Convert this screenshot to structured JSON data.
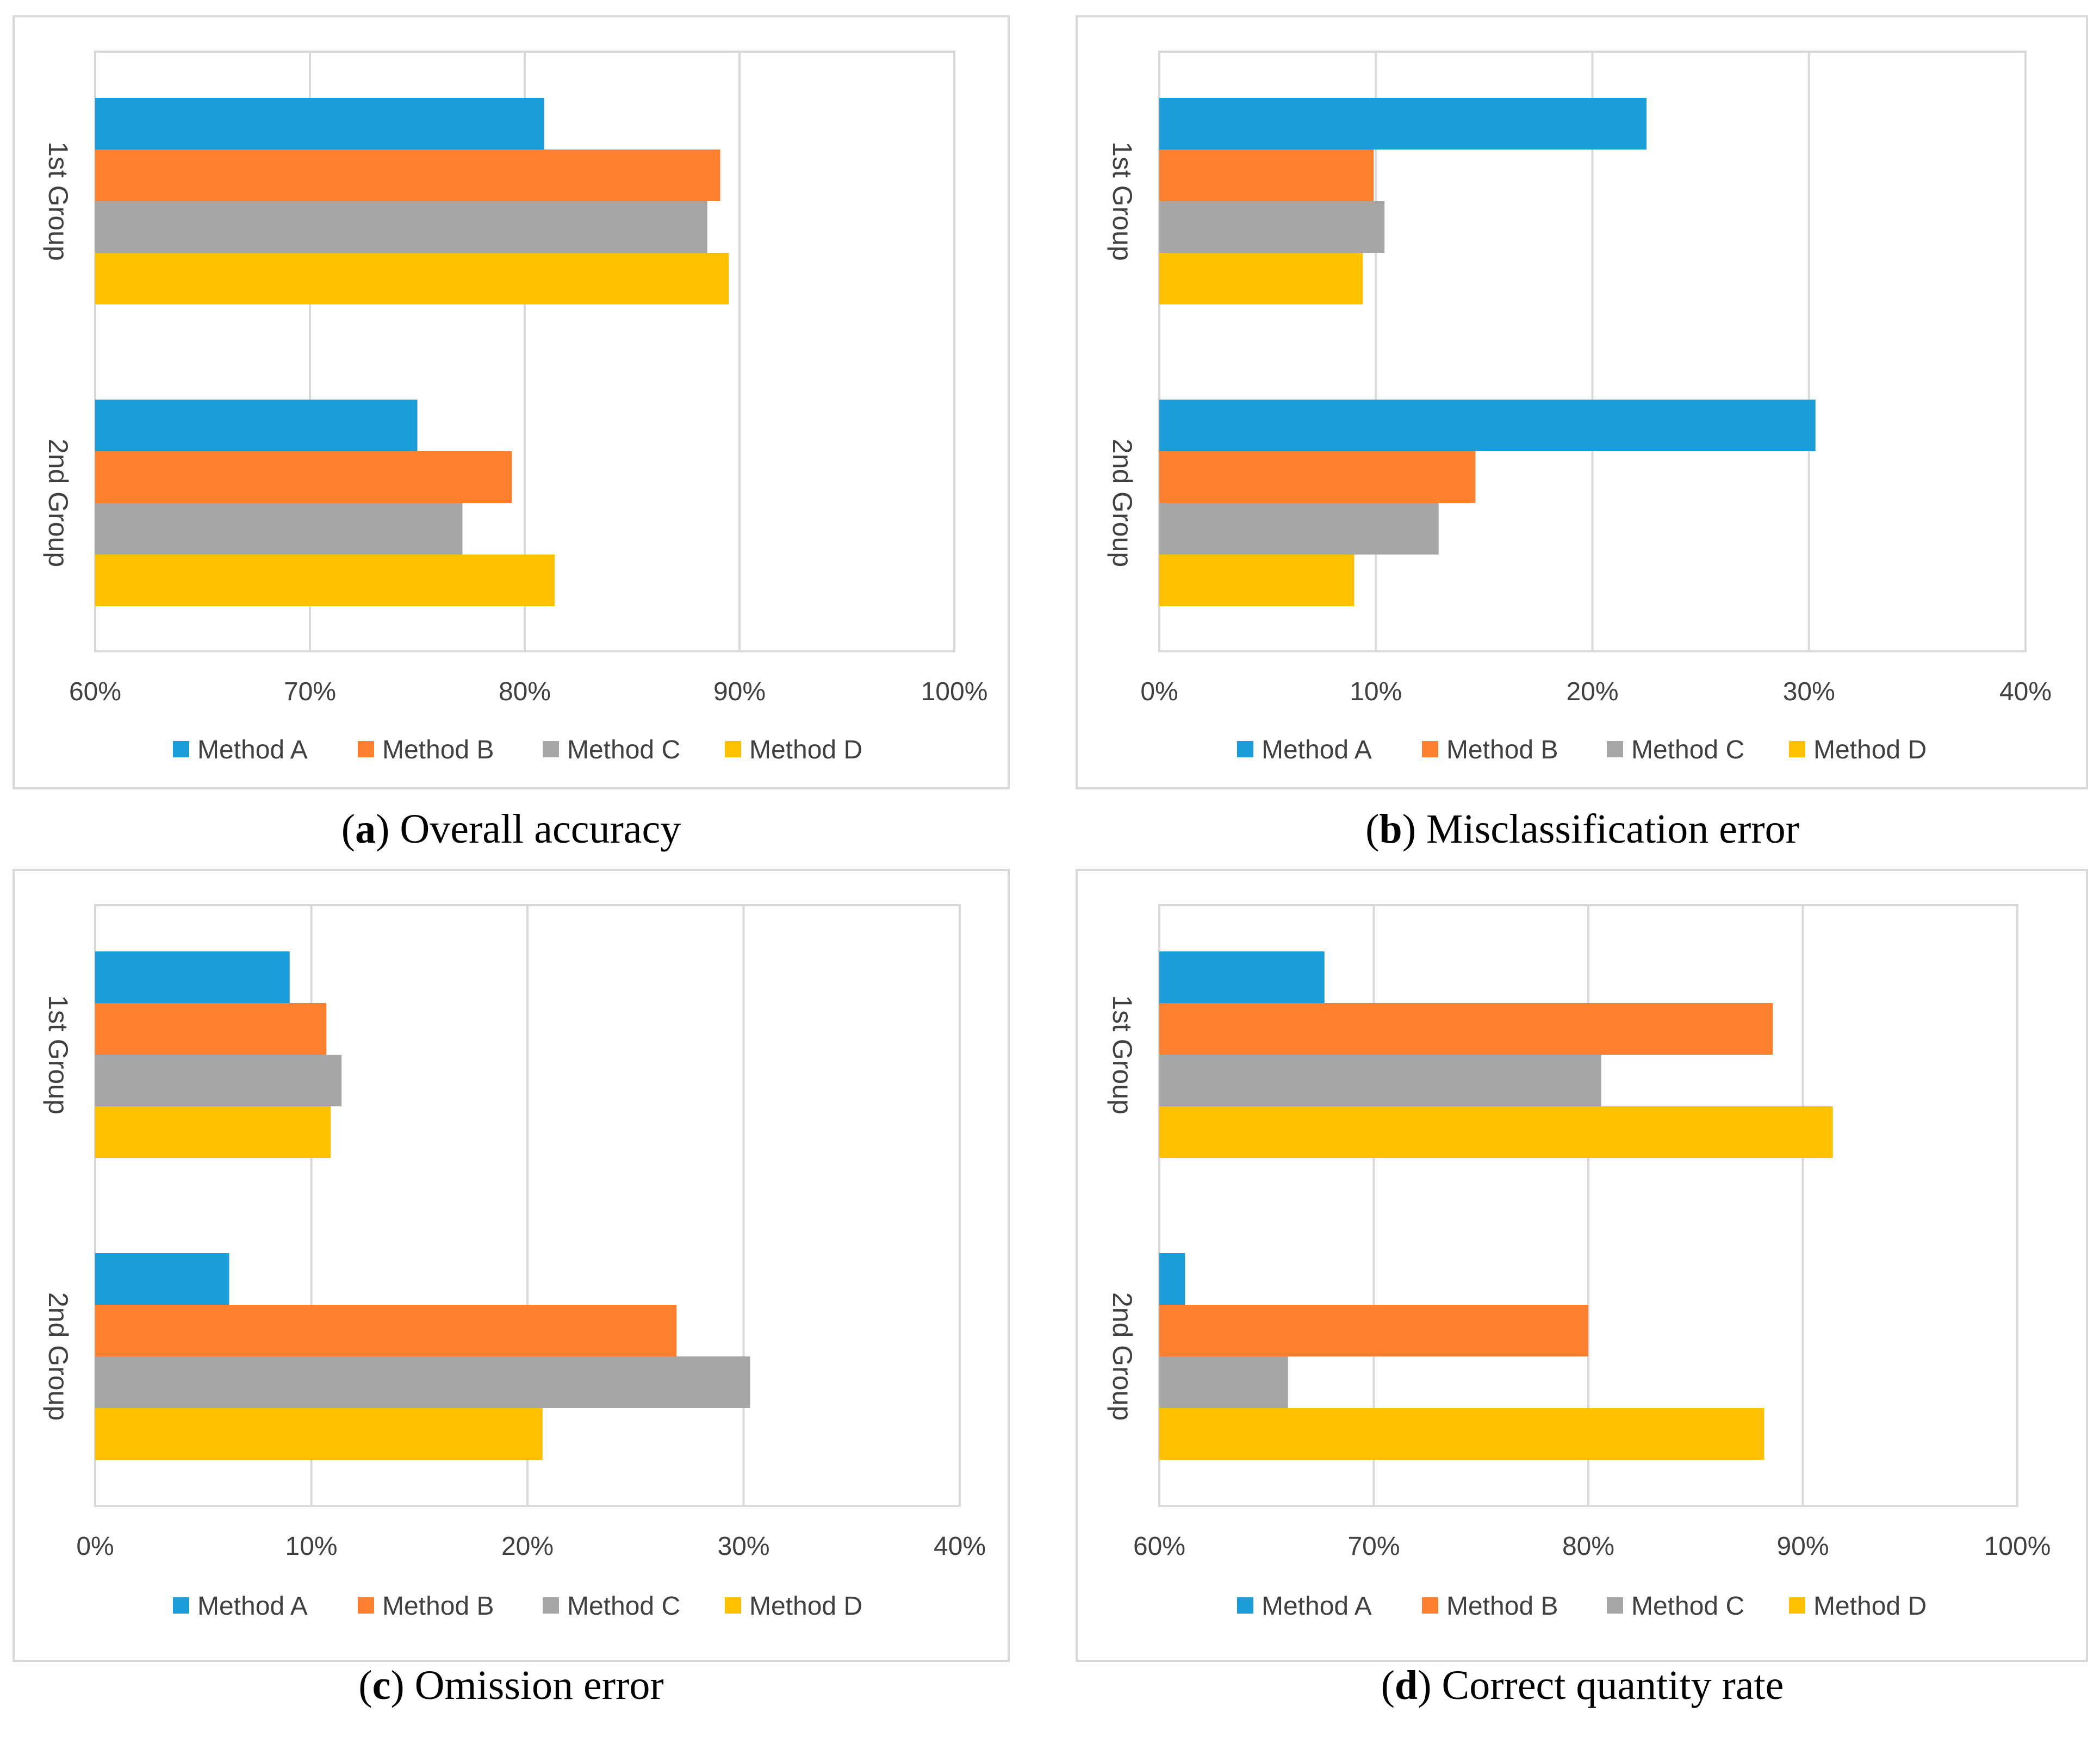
{
  "colors": {
    "Method A": "#1b9dd9",
    "Method B": "#fe7f2d",
    "Method C": "#a6a6a6",
    "Method D": "#ffc000",
    "grid": "#d9d9d9",
    "frame": "#d9d9d9",
    "text": "#404040"
  },
  "chart_data": [
    {
      "panel": "a",
      "caption_letter": "a",
      "caption_text": "Overall accuracy",
      "type": "bar",
      "orientation": "horizontal",
      "categories": [
        "1st Group",
        "2nd Group"
      ],
      "xlim": [
        0.6,
        1.0
      ],
      "ticks": [
        "60%",
        "70%",
        "80%",
        "90%",
        "100%"
      ],
      "legend_position": "bottom",
      "series": [
        {
          "name": "Method A",
          "values": [
            0.809,
            0.75
          ]
        },
        {
          "name": "Method B",
          "values": [
            0.891,
            0.794
          ]
        },
        {
          "name": "Method C",
          "values": [
            0.885,
            0.771
          ]
        },
        {
          "name": "Method D",
          "values": [
            0.895,
            0.814
          ]
        }
      ]
    },
    {
      "panel": "b",
      "caption_letter": "b",
      "caption_text": "Misclassification error",
      "type": "bar",
      "orientation": "horizontal",
      "categories": [
        "1st Group",
        "2nd Group"
      ],
      "xlim": [
        0.0,
        0.4
      ],
      "ticks": [
        "0%",
        "10%",
        "20%",
        "30%",
        "40%"
      ],
      "legend_position": "bottom",
      "series": [
        {
          "name": "Method A",
          "values": [
            0.225,
            0.303
          ]
        },
        {
          "name": "Method B",
          "values": [
            0.099,
            0.146
          ]
        },
        {
          "name": "Method C",
          "values": [
            0.104,
            0.129
          ]
        },
        {
          "name": "Method D",
          "values": [
            0.094,
            0.09
          ]
        }
      ]
    },
    {
      "panel": "c",
      "caption_letter": "c",
      "caption_text": "Omission error",
      "type": "bar",
      "orientation": "horizontal",
      "categories": [
        "1st Group",
        "2nd Group"
      ],
      "xlim": [
        0.0,
        0.4
      ],
      "ticks": [
        "0%",
        "10%",
        "20%",
        "30%",
        "40%"
      ],
      "legend_position": "bottom",
      "series": [
        {
          "name": "Method A",
          "values": [
            0.09,
            0.062
          ]
        },
        {
          "name": "Method B",
          "values": [
            0.107,
            0.269
          ]
        },
        {
          "name": "Method C",
          "values": [
            0.114,
            0.303
          ]
        },
        {
          "name": "Method D",
          "values": [
            0.109,
            0.207
          ]
        }
      ]
    },
    {
      "panel": "d",
      "caption_letter": "d",
      "caption_text": "Correct quantity rate",
      "type": "bar",
      "orientation": "horizontal",
      "categories": [
        "1st Group",
        "2nd Group"
      ],
      "xlim": [
        0.6,
        1.0
      ],
      "ticks": [
        "60%",
        "70%",
        "80%",
        "90%",
        "100%"
      ],
      "legend_position": "bottom",
      "series": [
        {
          "name": "Method A",
          "values": [
            0.677,
            0.612
          ]
        },
        {
          "name": "Method B",
          "values": [
            0.886,
            0.8
          ]
        },
        {
          "name": "Method C",
          "values": [
            0.806,
            0.66
          ]
        },
        {
          "name": "Method D",
          "values": [
            0.914,
            0.882
          ]
        }
      ]
    }
  ]
}
